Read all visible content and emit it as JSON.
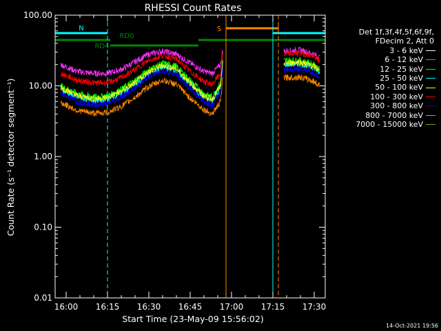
{
  "chart_data": {
    "type": "line",
    "title": "RHESSI Count Rates",
    "xlabel": "Start Time (23-May-09 15:56:02)",
    "ylabel": "Count Rate (s⁻¹ detector segment⁻¹)",
    "x_scale": "time",
    "x_range": [
      "15:56",
      "17:34"
    ],
    "x_ticks": [
      "16:00",
      "16:15",
      "16:30",
      "16:45",
      "17:00",
      "17:15",
      "17:30"
    ],
    "y_scale": "log",
    "ylim": [
      0.01,
      100
    ],
    "y_ticks": [
      "0.01",
      "0.10",
      "1.00",
      "10.00",
      "100.00"
    ],
    "legend_header": [
      "Det 1f,3f,4f,5f,6f,9f,",
      "FDecim 2, Att 0"
    ],
    "legend_position": "right",
    "x_samples": [
      "15:58",
      "16:04",
      "16:10",
      "16:15",
      "16:20",
      "16:25",
      "16:30",
      "16:35",
      "16:40",
      "16:45",
      "16:50",
      "16:53",
      "16:56",
      "16:57",
      "17:19",
      "17:25",
      "17:30",
      "17:32"
    ],
    "series": [
      {
        "name": "3 - 6 keV",
        "color": "#000000",
        "values": [
          13,
          10,
          9.3,
          9.5,
          11,
          15,
          20,
          24,
          21,
          14,
          9.5,
          8.8,
          13,
          30,
          26,
          27,
          24,
          20
        ]
      },
      {
        "name": "6 - 12 keV",
        "color": "#ff33ff",
        "values": [
          20,
          16,
          15,
          15,
          17,
          22,
          28,
          31,
          28,
          21,
          16,
          15,
          20,
          35,
          31,
          32,
          28,
          25
        ]
      },
      {
        "name": "12 - 25 keV",
        "color": "#00ff00",
        "values": [
          10,
          7.8,
          7.0,
          7.2,
          9,
          12,
          17,
          21,
          19,
          12,
          7.8,
          7.0,
          11,
          26,
          23,
          23,
          20,
          17
        ]
      },
      {
        "name": "25 - 50 keV",
        "color": "#00ffff",
        "values": [
          9,
          6.9,
          6.2,
          6.4,
          8,
          10.5,
          15,
          18.5,
          16.5,
          10.5,
          6.8,
          6.1,
          9.5,
          23,
          20,
          20.5,
          18,
          15
        ]
      },
      {
        "name": "50 - 100 keV",
        "color": "#ffff00",
        "values": [
          9.6,
          7.3,
          6.6,
          6.8,
          8.5,
          11,
          16,
          19.5,
          17.5,
          11,
          7.2,
          6.5,
          10,
          24,
          21,
          21.5,
          19,
          16
        ]
      },
      {
        "name": "100 - 300 keV",
        "color": "#ff0000",
        "values": [
          15,
          12,
          11,
          11,
          13,
          17,
          23,
          27,
          24,
          16,
          11.5,
          10.5,
          15,
          32,
          28,
          29,
          26,
          22
        ]
      },
      {
        "name": "300 - 800 keV",
        "color": "#0000ff",
        "values": [
          8,
          6,
          5.4,
          5.6,
          6.9,
          9.3,
          13.5,
          16.5,
          14.5,
          9,
          6,
          5.3,
          8.2,
          20,
          17,
          17.5,
          15,
          13
        ]
      },
      {
        "name": "800 - 7000 keV",
        "color": "#ff8800",
        "values": [
          5.8,
          4.5,
          4.1,
          4.2,
          5.1,
          6.9,
          9.8,
          12,
          10.5,
          6.7,
          4.6,
          4.0,
          6.0,
          15,
          13,
          13.3,
          11.5,
          10
        ]
      },
      {
        "name": "7000 - 15000 keV",
        "color": "#999900",
        "values": []
      }
    ],
    "annotations": [
      {
        "label": "N",
        "type": "night",
        "color": "#00ffff",
        "segments": [
          [
            "15:56",
            "16:15"
          ],
          [
            "17:15",
            "17:34"
          ]
        ]
      },
      {
        "label": "S",
        "type": "saa",
        "color": "#ff8800",
        "segments": [
          [
            "16:58",
            "17:17"
          ]
        ]
      },
      {
        "label": "RD0",
        "type": "decimation",
        "color": "#008800",
        "segments": [
          [
            "15:56",
            "17:34"
          ]
        ]
      },
      {
        "label": "RD4",
        "type": "decimation",
        "color": "#008800",
        "segments": [
          [
            "16:16",
            "16:48"
          ]
        ]
      }
    ],
    "vlines": [
      {
        "time": "15:56",
        "color": "#00ffff",
        "style": "solid"
      },
      {
        "time": "16:15",
        "color": "#00ffff",
        "style": "dashed"
      },
      {
        "time": "16:58",
        "color": "#ff8800",
        "style": "solid"
      },
      {
        "time": "17:15",
        "color": "#00ffff",
        "style": "solid"
      },
      {
        "time": "17:17",
        "color": "#ff8800",
        "style": "dashed"
      },
      {
        "time": "17:34",
        "color": "#00ffff",
        "style": "dashed"
      }
    ]
  },
  "footer": {
    "timestamp": "14-Oct-2021 19:56"
  }
}
